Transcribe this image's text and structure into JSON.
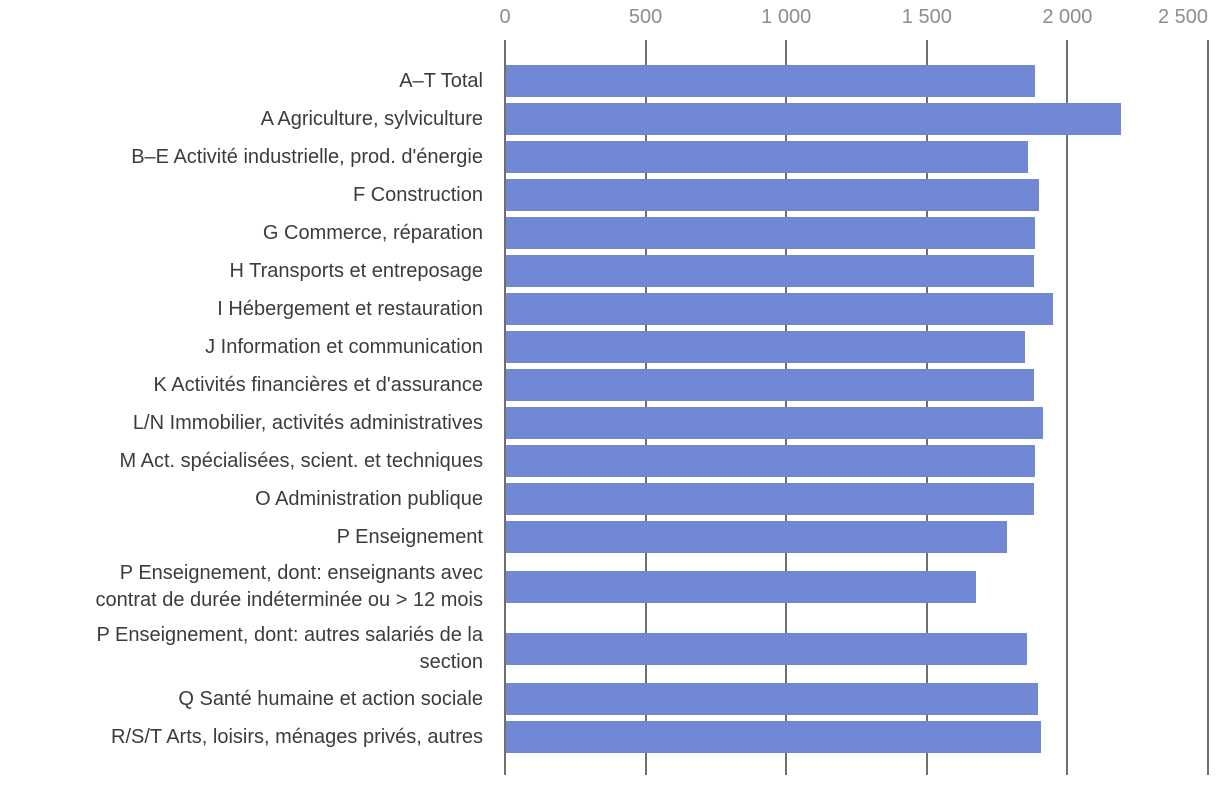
{
  "chart_data": {
    "type": "bar",
    "orientation": "horizontal",
    "title": "",
    "xlabel": "",
    "ylabel": "",
    "categories": [
      "A–T Total",
      "A Agriculture, sylviculture",
      "B–E Activité industrielle, prod. d'énergie",
      "F Construction",
      "G Commerce, réparation",
      "H Transports et entreposage",
      "I Hébergement et restauration",
      "J Information et communication",
      "K Activités financières et d'assurance",
      "L/N Immobilier, activités administratives",
      "M Act. spécialisées, scient. et techniques",
      "O Administration publique",
      "P Enseignement",
      "P Enseignement, dont: enseignants avec\ncontrat de durée indéterminée ou > 12 mois",
      "P Enseignement, dont: autres salariés de la\nsection",
      "Q Santé humaine et action sociale",
      "R/S/T Arts, loisirs, ménages privés, autres"
    ],
    "values": [
      1885,
      2190,
      1860,
      1900,
      1885,
      1880,
      1950,
      1850,
      1880,
      1915,
      1885,
      1880,
      1785,
      1675,
      1855,
      1895,
      1905
    ],
    "xlim": [
      0,
      2500
    ],
    "xticks": [
      0,
      500,
      1000,
      1500,
      2000,
      2500
    ],
    "xtick_labels": [
      "0",
      "500",
      "1 000",
      "1 500",
      "2 000",
      "2 500"
    ],
    "grid": true,
    "legend_position": "none",
    "bar_color": "#7189d4",
    "grid_color": "#6f6f6f",
    "category_label_color": "#3c3c3c",
    "tick_label_color": "#8d8d8d"
  }
}
